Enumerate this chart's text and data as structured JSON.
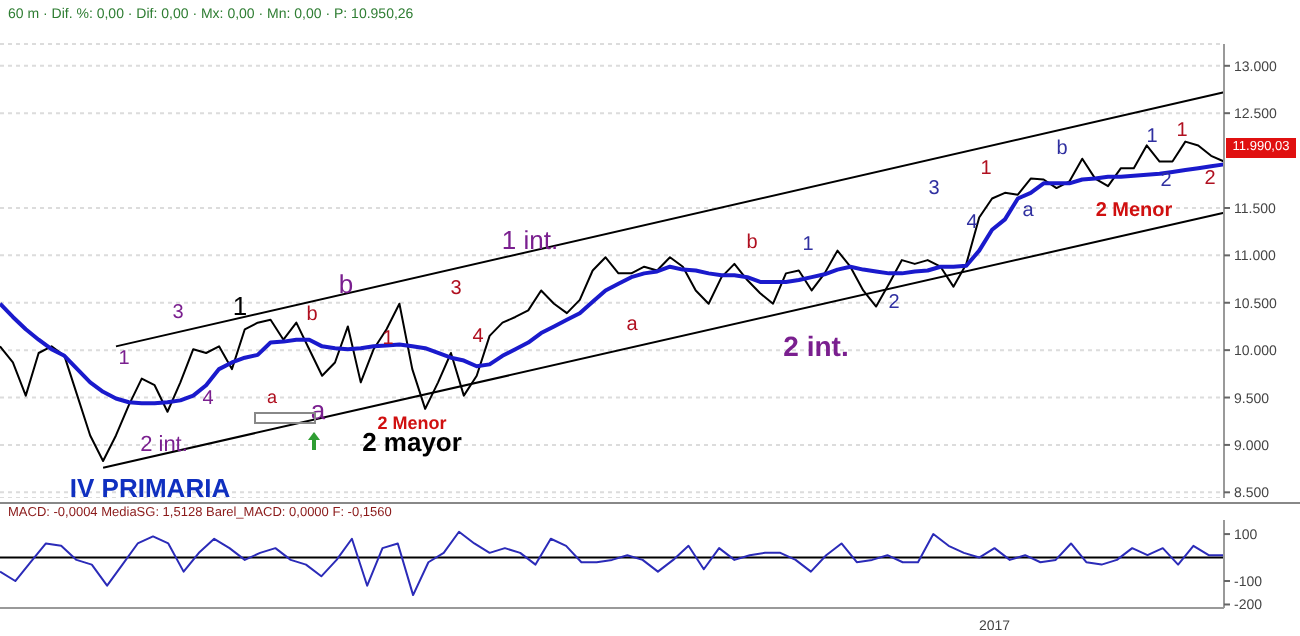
{
  "chart_data": [
    {
      "type": "line",
      "subtitle": "60 m · Dif. %: 0,00 · Dif: 0,00 · Mx: 0,00 · Mn: 0,00 · P: 10.950,26",
      "categories": [
        null,
        null,
        null,
        null,
        null,
        null,
        null,
        null,
        null,
        null,
        null,
        null,
        null,
        null,
        null,
        null,
        null,
        null,
        null,
        null,
        null,
        null,
        null,
        null,
        null,
        null,
        null,
        null,
        null,
        null,
        null,
        null,
        null,
        null,
        null,
        null,
        null,
        null,
        null,
        null,
        null,
        null,
        null,
        null,
        null,
        null,
        null,
        null,
        null,
        null,
        null,
        null,
        null,
        null,
        null,
        null,
        null,
        null,
        null,
        null,
        null,
        null,
        null,
        null,
        null,
        null,
        null,
        null,
        null,
        null,
        null,
        null,
        null,
        null,
        null,
        null,
        null,
        null,
        null,
        null,
        null,
        null,
        null,
        null,
        null,
        null,
        null,
        null,
        null,
        null,
        null,
        null,
        null,
        null,
        null,
        null
      ],
      "series": [
        {
          "color": "#000000",
          "values": [
            10040,
            9870,
            9520,
            9970,
            10040,
            9940,
            9520,
            9100,
            8830,
            9100,
            9420,
            9700,
            9630,
            9350,
            9660,
            10010,
            9970,
            10040,
            9800,
            10220,
            10290,
            10320,
            10110,
            10290,
            10010,
            9730,
            9870,
            10250,
            9660,
            10010,
            10220,
            10490,
            9800,
            9380,
            9660,
            9970,
            9520,
            9730,
            10150,
            10290,
            10350,
            10420,
            10630,
            10490,
            10390,
            10530,
            10840,
            10980,
            10810,
            10810,
            10880,
            10840,
            10980,
            10880,
            10630,
            10490,
            10770,
            10910,
            10740,
            10600,
            10490,
            10810,
            10840,
            10630,
            10810,
            11050,
            10880,
            10630,
            10460,
            10700,
            10950,
            10910,
            10950,
            10880,
            10670,
            10910,
            11400,
            11600,
            11660,
            11640,
            11810,
            11800,
            11710,
            11780,
            12020,
            11810,
            11730,
            11920,
            11920,
            12160,
            11990,
            11990,
            12200,
            12160,
            12050,
            11990
          ]
        },
        {
          "color": "#1a1acc",
          "values": [
            10490,
            10350,
            10220,
            10110,
            10010,
            9940,
            9800,
            9660,
            9560,
            9490,
            9450,
            9440,
            9440,
            9450,
            9470,
            9520,
            9630,
            9800,
            9870,
            9920,
            9950,
            10080,
            10090,
            10110,
            10110,
            10040,
            10020,
            10010,
            10020,
            10040,
            10050,
            10060,
            10040,
            10020,
            9970,
            9920,
            9890,
            9830,
            9850,
            9940,
            10010,
            10080,
            10180,
            10250,
            10320,
            10390,
            10510,
            10630,
            10700,
            10770,
            10810,
            10830,
            10880,
            10850,
            10840,
            10810,
            10790,
            10790,
            10770,
            10720,
            10720,
            10720,
            10740,
            10770,
            10800,
            10850,
            10880,
            10850,
            10830,
            10810,
            10810,
            10830,
            10840,
            10880,
            10880,
            10890,
            11050,
            11270,
            11380,
            11600,
            11660,
            11760,
            11760,
            11760,
            11800,
            11810,
            11830,
            11830,
            11840,
            11850,
            11860,
            11880,
            11900,
            11920,
            11940,
            11960
          ]
        },
        {
          "color": "#000000",
          "values": [
            null,
            null,
            null,
            null,
            null,
            null,
            null,
            null,
            null,
            10040,
            null,
            null,
            null,
            null,
            null,
            null,
            null,
            null,
            null,
            null,
            null,
            null,
            null,
            null,
            null,
            null,
            null,
            null,
            null,
            null,
            null,
            null,
            null,
            null,
            null,
            null,
            null,
            null,
            null,
            null,
            null,
            null,
            null,
            null,
            null,
            null,
            null,
            null,
            null,
            null,
            null,
            null,
            null,
            null,
            null,
            null,
            null,
            null,
            null,
            null,
            null,
            null,
            null,
            null,
            null,
            null,
            null,
            null,
            null,
            null,
            null,
            null,
            null,
            null,
            null,
            null,
            null,
            null,
            null,
            null,
            null,
            null,
            null,
            null,
            null,
            null,
            null,
            null,
            null,
            null,
            null,
            null,
            null,
            null,
            null,
            12720
          ]
        },
        {
          "color": "#000000",
          "values": [
            null,
            null,
            null,
            null,
            null,
            null,
            null,
            null,
            8760,
            null,
            null,
            null,
            null,
            null,
            null,
            null,
            null,
            null,
            null,
            null,
            null,
            null,
            null,
            null,
            null,
            null,
            null,
            null,
            null,
            null,
            null,
            null,
            null,
            null,
            null,
            null,
            null,
            null,
            null,
            null,
            null,
            null,
            null,
            null,
            null,
            null,
            null,
            null,
            null,
            null,
            null,
            null,
            null,
            null,
            null,
            null,
            null,
            null,
            null,
            null,
            null,
            null,
            null,
            null,
            null,
            null,
            null,
            null,
            null,
            null,
            null,
            null,
            null,
            null,
            null,
            null,
            null,
            null,
            null,
            null,
            null,
            null,
            null,
            null,
            null,
            null,
            null,
            null,
            null,
            null,
            null,
            null,
            null,
            null,
            null,
            11450
          ]
        }
      ],
      "ylim": [
        8440,
        13230
      ],
      "yticks": [
        {
          "value": 8500,
          "label": "8.500"
        },
        {
          "value": 9000,
          "label": "9.000"
        },
        {
          "value": 9500,
          "label": "9.500"
        },
        {
          "value": 10000,
          "label": "10.000"
        },
        {
          "value": 10500,
          "label": "10.500"
        },
        {
          "value": 11000,
          "label": "11.000"
        },
        {
          "value": 11500,
          "label": "11.500"
        },
        {
          "value": 12500,
          "label": "12.500"
        },
        {
          "value": 13000,
          "label": "13.000"
        }
      ],
      "grid": "y",
      "tick_labels": "y",
      "annotations": [
        "1",
        "3",
        "1",
        "4",
        "a",
        "b",
        "b",
        "a",
        "1",
        "2 int.",
        "2 mayor",
        "2 Menor",
        "IV PRIMARIA",
        "3",
        "4",
        "1 int.",
        "a",
        "b",
        "1",
        "2 int.",
        "2",
        "3",
        "4",
        "1",
        "a",
        "b",
        "1",
        "2",
        "1",
        "2",
        "2 Menor",
        "11.990,03"
      ]
    },
    {
      "type": "line",
      "title": "MACD: -0,0004 MediaSG: 1,5128 Barel_MACD: 0,0000 F: -0,1560",
      "categories": [
        null,
        null,
        null,
        null,
        null,
        null,
        null,
        null,
        null,
        null,
        null,
        null,
        null,
        null,
        null,
        null,
        null,
        null,
        null,
        null,
        null,
        null,
        null,
        null,
        null,
        null,
        null,
        null,
        null,
        null,
        null,
        null,
        null,
        null,
        null,
        null,
        null,
        null,
        null,
        null,
        null,
        null,
        null,
        null,
        null,
        null,
        null,
        null,
        null,
        null,
        null,
        null,
        null,
        null,
        null,
        null,
        null,
        null,
        null,
        null,
        null,
        null,
        null,
        null,
        null,
        "2017",
        null,
        null,
        null,
        null,
        null,
        null,
        null,
        null,
        null,
        null,
        null,
        null,
        null,
        null,
        null
      ],
      "series": [
        {
          "color": "#2b2bb8",
          "values": [
            -60,
            -100,
            -20,
            60,
            50,
            -10,
            -30,
            -120,
            -30,
            60,
            90,
            60,
            -60,
            20,
            80,
            40,
            -10,
            20,
            40,
            -10,
            -30,
            -80,
            -10,
            80,
            -120,
            40,
            60,
            -160,
            -20,
            20,
            110,
            60,
            20,
            40,
            20,
            -30,
            80,
            50,
            -20,
            -20,
            -10,
            10,
            -10,
            -60,
            -10,
            50,
            -50,
            40,
            -10,
            10,
            20,
            20,
            -10,
            -60,
            10,
            60,
            -20,
            -10,
            10,
            -20,
            -20,
            100,
            50,
            20,
            0,
            40,
            -10,
            10,
            -20,
            -10,
            60,
            -20,
            -30,
            -10,
            40,
            10,
            40,
            -30,
            50,
            10,
            10
          ]
        }
      ],
      "ylim": [
        -215,
        160
      ],
      "yticks": [
        -200,
        -100,
        100
      ],
      "ref_lines": [
        {
          "axis": "y",
          "value": 0,
          "color": "#000000"
        }
      ]
    }
  ]
}
